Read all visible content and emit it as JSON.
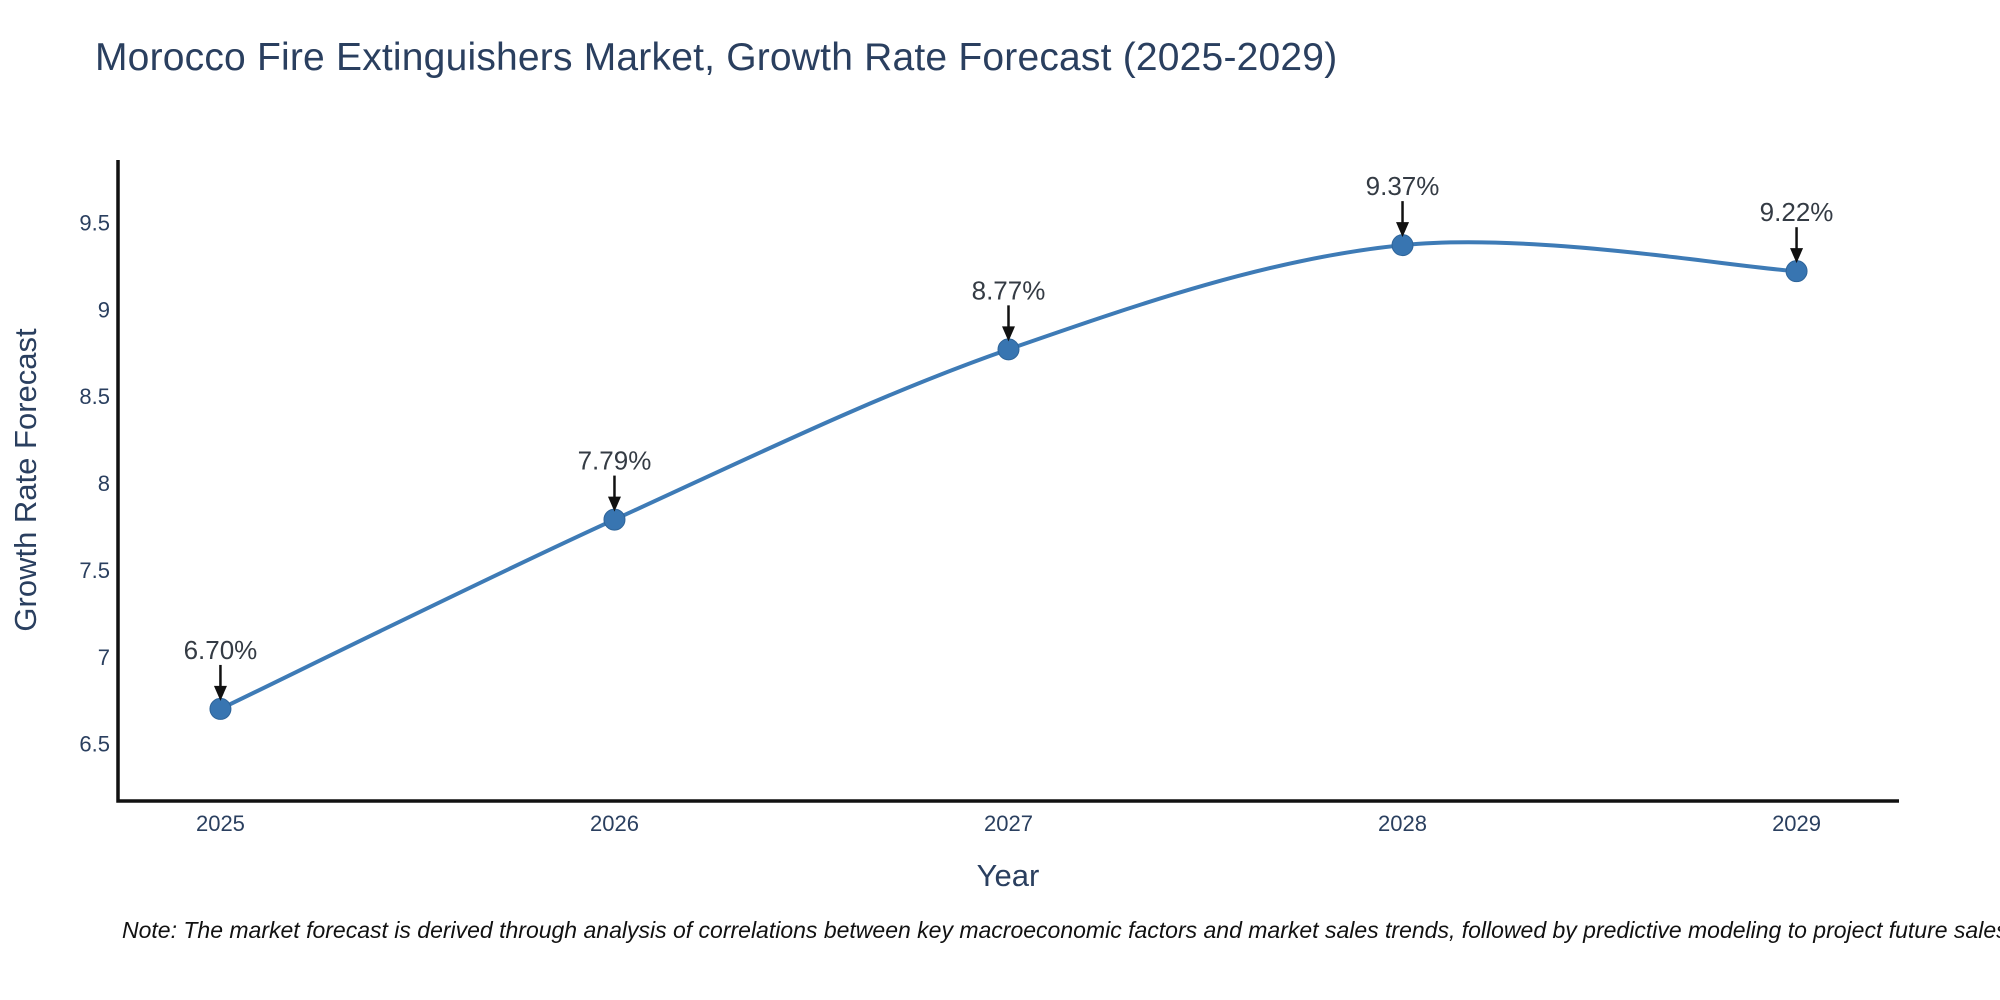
{
  "title": "Morocco Fire Extinguishers Market, Growth Rate Forecast (2025-2029)",
  "note": "Note: The market forecast is derived through analysis of correlations between key macroeconomic factors and market sales trends, followed by predictive modeling to project future sales",
  "chart_data": {
    "type": "line",
    "title": "Morocco Fire Extinguishers Market, Growth Rate Forecast (2025-2029)",
    "xlabel": "Year",
    "ylabel": "Growth Rate Forecast",
    "x": [
      2025,
      2026,
      2027,
      2028,
      2029
    ],
    "values": [
      6.7,
      7.79,
      8.77,
      9.37,
      9.22
    ],
    "point_labels": [
      "6.70%",
      "7.79%",
      "8.77%",
      "9.37%",
      "9.22%"
    ],
    "xtick_labels": [
      "2025",
      "2026",
      "2027",
      "2028",
      "2029"
    ],
    "ytick_values": [
      6.5,
      7,
      7.5,
      8,
      8.5,
      9,
      9.5
    ],
    "ytick_labels": [
      "6.5",
      "7",
      "7.5",
      "8",
      "8.5",
      "9",
      "9.5"
    ],
    "xlim": [
      2024.74,
      2029.26
    ],
    "ylim": [
      6.17,
      9.86
    ],
    "line_shape": "spline",
    "grid": false,
    "legend_position": "none",
    "marker": "circle",
    "annotation_arrows": true,
    "colors": {
      "line": "#3e7bb6",
      "marker_fill": "#3875b1",
      "marker_edge": "#2e6499",
      "axis_line": "#111111",
      "tick_text": "#2a3f5f",
      "title_text": "#2a3f5f",
      "annotation_text": "#343b44",
      "arrow": "#111111",
      "background": "#ffffff"
    }
  }
}
